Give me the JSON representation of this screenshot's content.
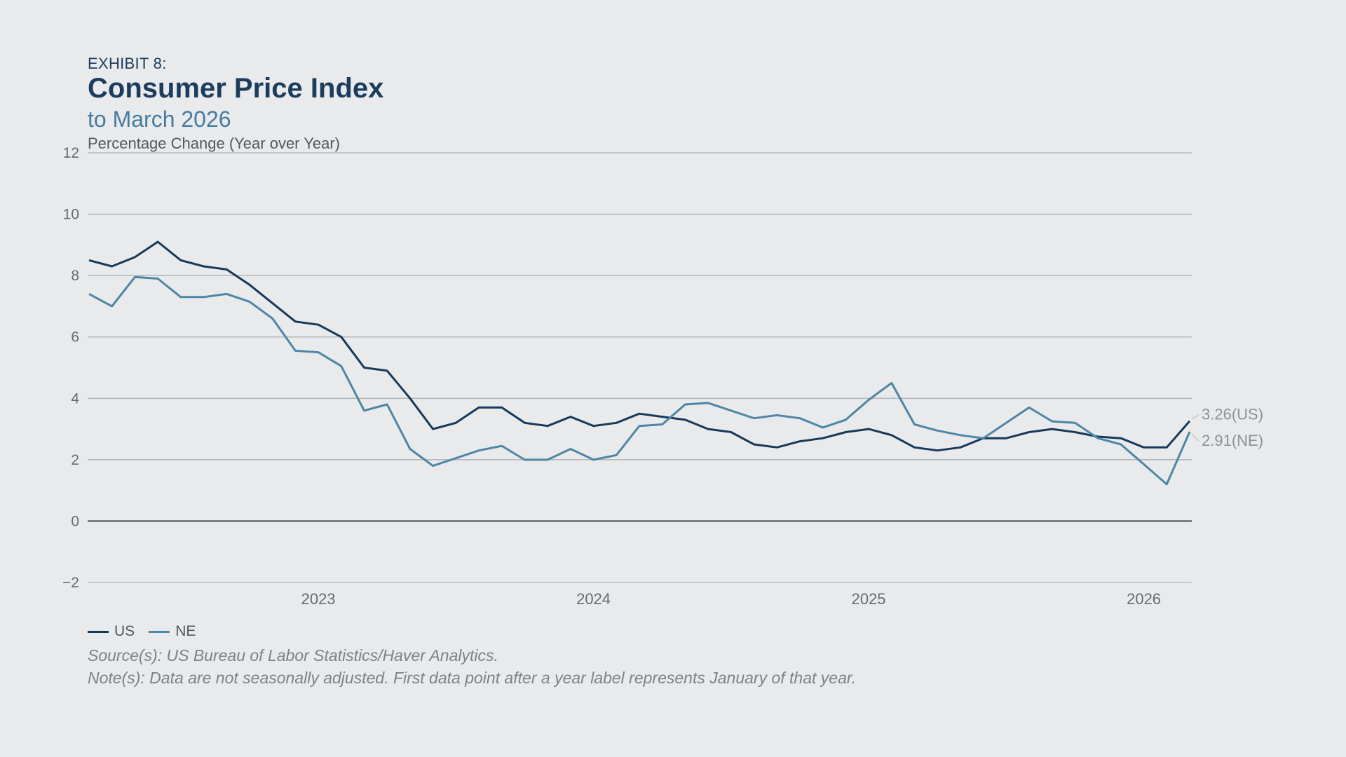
{
  "header": {
    "exhibit_label": "EXHIBIT 8:",
    "title": "Consumer Price Index",
    "subtitle": "to March 2026",
    "axis_caption": "Percentage Change (Year over Year)"
  },
  "chart_data": {
    "type": "line",
    "title": "Consumer Price Index to March 2026",
    "ylabel": "Percentage Change (Year over Year)",
    "ylim": [
      -2,
      12
    ],
    "y_ticks": [
      12,
      10,
      8,
      6,
      4,
      2,
      0,
      -2
    ],
    "grid": true,
    "zero_line_emphasized": true,
    "x_frequency": "monthly",
    "x_start": "2022-03",
    "x_end": "2026-03",
    "categories": [
      "2022-03",
      "2022-04",
      "2022-05",
      "2022-06",
      "2022-07",
      "2022-08",
      "2022-09",
      "2022-10",
      "2022-11",
      "2022-12",
      "2023-01",
      "2023-02",
      "2023-03",
      "2023-04",
      "2023-05",
      "2023-06",
      "2023-07",
      "2023-08",
      "2023-09",
      "2023-10",
      "2023-11",
      "2023-12",
      "2024-01",
      "2024-02",
      "2024-03",
      "2024-04",
      "2024-05",
      "2024-06",
      "2024-07",
      "2024-08",
      "2024-09",
      "2024-10",
      "2024-11",
      "2024-12",
      "2025-01",
      "2025-02",
      "2025-03",
      "2025-04",
      "2025-05",
      "2025-06",
      "2025-07",
      "2025-08",
      "2025-09",
      "2025-10",
      "2025-11",
      "2025-12",
      "2026-01",
      "2026-02",
      "2026-03"
    ],
    "x_ticks": [
      {
        "label": "2023",
        "month_index": 10
      },
      {
        "label": "2024",
        "month_index": 22
      },
      {
        "label": "2025",
        "month_index": 34
      },
      {
        "label": "2026",
        "month_index": 46
      }
    ],
    "series": [
      {
        "name": "US",
        "color": "#17395a",
        "values": [
          8.5,
          8.3,
          8.6,
          9.1,
          8.5,
          8.3,
          8.2,
          7.7,
          7.1,
          6.5,
          6.4,
          6.0,
          5.0,
          4.9,
          4.0,
          3.0,
          3.2,
          3.7,
          3.7,
          3.2,
          3.1,
          3.4,
          3.1,
          3.2,
          3.5,
          3.4,
          3.3,
          3.0,
          2.9,
          2.5,
          2.4,
          2.6,
          2.7,
          2.9,
          3.0,
          2.8,
          2.4,
          2.3,
          2.4,
          2.7,
          2.7,
          2.9,
          3.0,
          2.9,
          2.75,
          2.7,
          2.4,
          2.4,
          3.26
        ]
      },
      {
        "name": "NE",
        "color": "#4e86a6",
        "values": [
          7.4,
          7.0,
          7.95,
          7.9,
          7.3,
          7.3,
          7.4,
          7.15,
          6.6,
          5.55,
          5.5,
          5.05,
          3.6,
          3.8,
          2.35,
          1.8,
          2.05,
          2.3,
          2.45,
          2.0,
          2.0,
          2.35,
          2.0,
          2.15,
          3.1,
          3.15,
          3.8,
          3.85,
          3.6,
          3.35,
          3.45,
          3.35,
          3.05,
          3.3,
          3.95,
          4.5,
          3.15,
          2.95,
          2.8,
          2.7,
          3.2,
          3.7,
          3.25,
          3.2,
          2.7,
          2.5,
          1.85,
          1.2,
          2.91
        ]
      }
    ],
    "end_labels": [
      {
        "series": "US",
        "text": "3.26(US)",
        "value": 3.26
      },
      {
        "series": "NE",
        "text": "2.91(NE)",
        "value": 2.91
      }
    ],
    "legend_position": "bottom-left"
  },
  "footer": {
    "legend": [
      {
        "label": "US"
      },
      {
        "label": "NE"
      }
    ],
    "source_line": "Source(s): US Bureau of Labor Statistics/Haver Analytics.",
    "note_line": "Note(s): Data are not seasonally adjusted. First data point after a year label represents January of that year."
  },
  "colors": {
    "background": "#e8eaeb",
    "title_navy": "#1c3c5e",
    "subtitle_blue": "#467ba1",
    "caption_gray": "#55585a",
    "tick_gray": "#696c6e",
    "gridline": "#b6b9bb",
    "zero_line": "#6e7174",
    "end_label_gray": "#8f9294",
    "leader_gray": "#c3c5c7",
    "source_gray": "#7f8284"
  }
}
